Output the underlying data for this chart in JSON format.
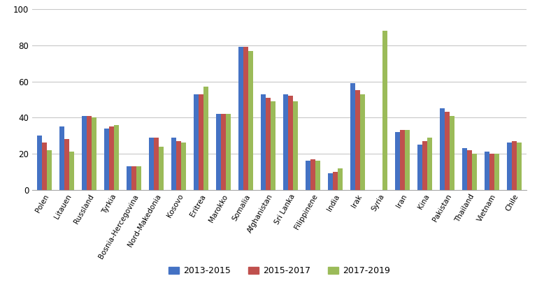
{
  "categories": [
    "Polen",
    "Litauen",
    "Russland",
    "Tyrkia",
    "Bosnia-Hercegovina",
    "Nord-Makedonia",
    "Kosovo",
    "Eritrea",
    "Marokko",
    "Somalia",
    "Afghanistan",
    "Sri Lanka",
    "Filippinene",
    "India",
    "Irak",
    "Syria",
    "Iran",
    "Kina",
    "Pakistan",
    "Thailand",
    "Vietnam",
    "Chile"
  ],
  "series": {
    "2013-2015": [
      30,
      35,
      41,
      34,
      13,
      29,
      29,
      53,
      42,
      79,
      53,
      53,
      16,
      9,
      59,
      0,
      32,
      25,
      45,
      23,
      21,
      26
    ],
    "2015-2017": [
      26,
      28,
      41,
      35,
      13,
      29,
      27,
      53,
      42,
      79,
      51,
      52,
      17,
      10,
      55,
      0,
      33,
      27,
      43,
      22,
      20,
      27
    ],
    "2017-2019": [
      22,
      21,
      40,
      36,
      13,
      24,
      26,
      57,
      42,
      77,
      49,
      49,
      16,
      12,
      53,
      88,
      33,
      29,
      41,
      20,
      20,
      26
    ]
  },
  "colors": {
    "2013-2015": "#4472C4",
    "2015-2017": "#C0504D",
    "2017-2019": "#9BBB59"
  },
  "ylim": [
    0,
    100
  ],
  "yticks": [
    0,
    20,
    40,
    60,
    80,
    100
  ],
  "background_color": "#ffffff",
  "grid_color": "#c8c8c8",
  "bar_width": 0.22,
  "legend_labels": [
    "2013-2015",
    "2015-2017",
    "2017-2019"
  ]
}
